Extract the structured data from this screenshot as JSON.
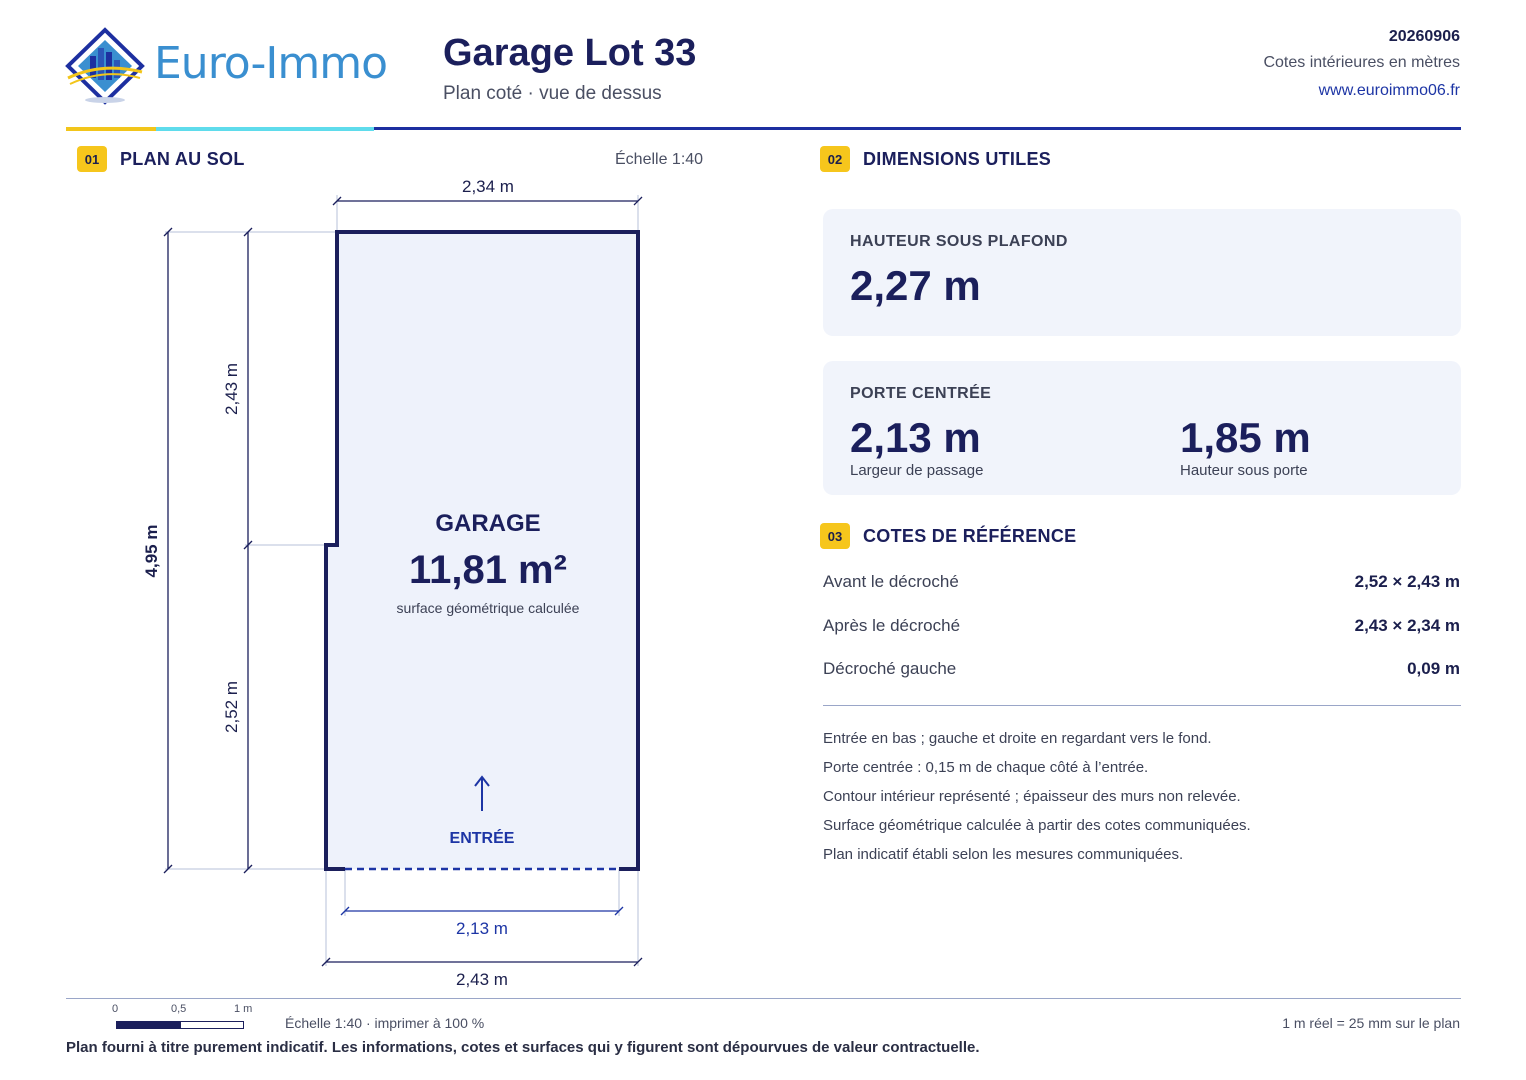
{
  "header": {
    "brand": "Euro-Immo",
    "title": "Garage Lot 33",
    "subtitle": "Plan coté · vue de dessus",
    "date": "20260906",
    "units_note": "Cotes intérieures en mètres",
    "website": "www.euroimmo06.fr"
  },
  "plan": {
    "badge": "01",
    "title": "PLAN AU SOL",
    "scale_note": "Échelle 1:40",
    "room_name": "GARAGE",
    "room_area": "11,81 m²",
    "room_area_caption": "surface géométrique calculée",
    "entry_label": "ENTRÉE",
    "dims": {
      "top_width": "2,34 m",
      "total_height": "4,95 m",
      "upper_height": "2,43 m",
      "lower_height": "2,52 m",
      "door_width": "2,13 m",
      "bottom_width": "2,43 m"
    }
  },
  "dimensions": {
    "badge": "02",
    "title": "DIMENSIONS UTILES",
    "ceiling": {
      "label": "HAUTEUR SOUS PLAFOND",
      "value": "2,27 m"
    },
    "door": {
      "label": "PORTE CENTRÉE",
      "width_value": "2,13 m",
      "width_caption": "Largeur de passage",
      "height_value": "1,85 m",
      "height_caption": "Hauteur sous porte"
    }
  },
  "references": {
    "badge": "03",
    "title": "COTES DE RÉFÉRENCE",
    "rows": [
      {
        "label": "Avant le décroché",
        "value": "2,52 × 2,43 m"
      },
      {
        "label": "Après le décroché",
        "value": "2,43 × 2,34 m"
      },
      {
        "label": "Décroché gauche",
        "value": "0,09 m"
      }
    ],
    "notes": [
      "Entrée en bas ; gauche et droite en regardant vers le fond.",
      "Porte centrée : 0,15 m de chaque côté à l’entrée.",
      "Contour intérieur représenté ; épaisseur des murs non relevée.",
      "Surface géométrique calculée à partir des cotes communiquées.",
      "Plan indicatif établi selon les mesures communiquées."
    ]
  },
  "footer": {
    "scale_ticks": [
      "0",
      "0,5",
      "1 m"
    ],
    "scale_text": "Échelle 1:40 · imprimer à 100 %",
    "ratio_text": "1 m réel = 25 mm sur le plan",
    "disclaimer": "Plan fourni à titre purement indicatif. Les informations, cotes et surfaces qui y figurent sont dépourvues de valeur contractuelle."
  },
  "colors": {
    "navy": "#1b1f5c",
    "accent_blue": "#1d35a5",
    "accent_yellow": "#f6c61c",
    "accent_cyan": "#5fdcec",
    "card_bg": "#f1f4fb",
    "room_fill": "#eef2fb"
  }
}
